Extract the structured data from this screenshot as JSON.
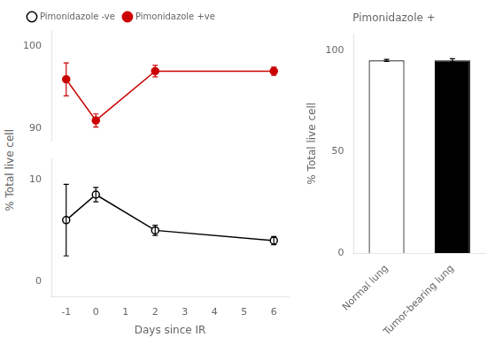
{
  "chart_data": [
    {
      "type": "line",
      "x": [
        -1,
        0,
        2,
        6
      ],
      "xlabel": "Days since IR",
      "ylabel": "% Total live cell",
      "xlim": [
        -1.5,
        6.5
      ],
      "xticks": [
        -1,
        0,
        1,
        2,
        3,
        4,
        5,
        6
      ],
      "ylim": [
        -1.5,
        12
      ],
      "yticks": [
        0,
        10
      ],
      "y2lim": [
        88.5,
        102
      ],
      "y2ticks": [
        90,
        100
      ],
      "grid": false,
      "legend": "upper left",
      "series": [
        {
          "name": "Pimonidazole -ve",
          "color": "#000000",
          "marker": "open_circle",
          "values": [
            6,
            8.5,
            5,
            4
          ],
          "yerr": [
            3.5,
            0.7,
            0.5,
            0.4
          ]
        },
        {
          "name": "Pimonidazole +ve",
          "color": "#cc0000",
          "marker": "circle",
          "axis": "y2",
          "values": [
            96,
            91,
            97,
            97
          ],
          "yerr": [
            2.0,
            0.8,
            0.7,
            0.5
          ]
        }
      ]
    },
    {
      "type": "bar",
      "title": "Pimonidazole +",
      "categories": [
        "Normal lung",
        "Tumor-bearing lung"
      ],
      "values": [
        95,
        95
      ],
      "yerr": [
        0.5,
        0.8
      ],
      "colors": [
        "white",
        "black"
      ],
      "ylabel": "% Total live cell",
      "ylim": [
        0,
        108
      ],
      "yticks": [
        0,
        50,
        100
      ],
      "grid": false
    }
  ]
}
